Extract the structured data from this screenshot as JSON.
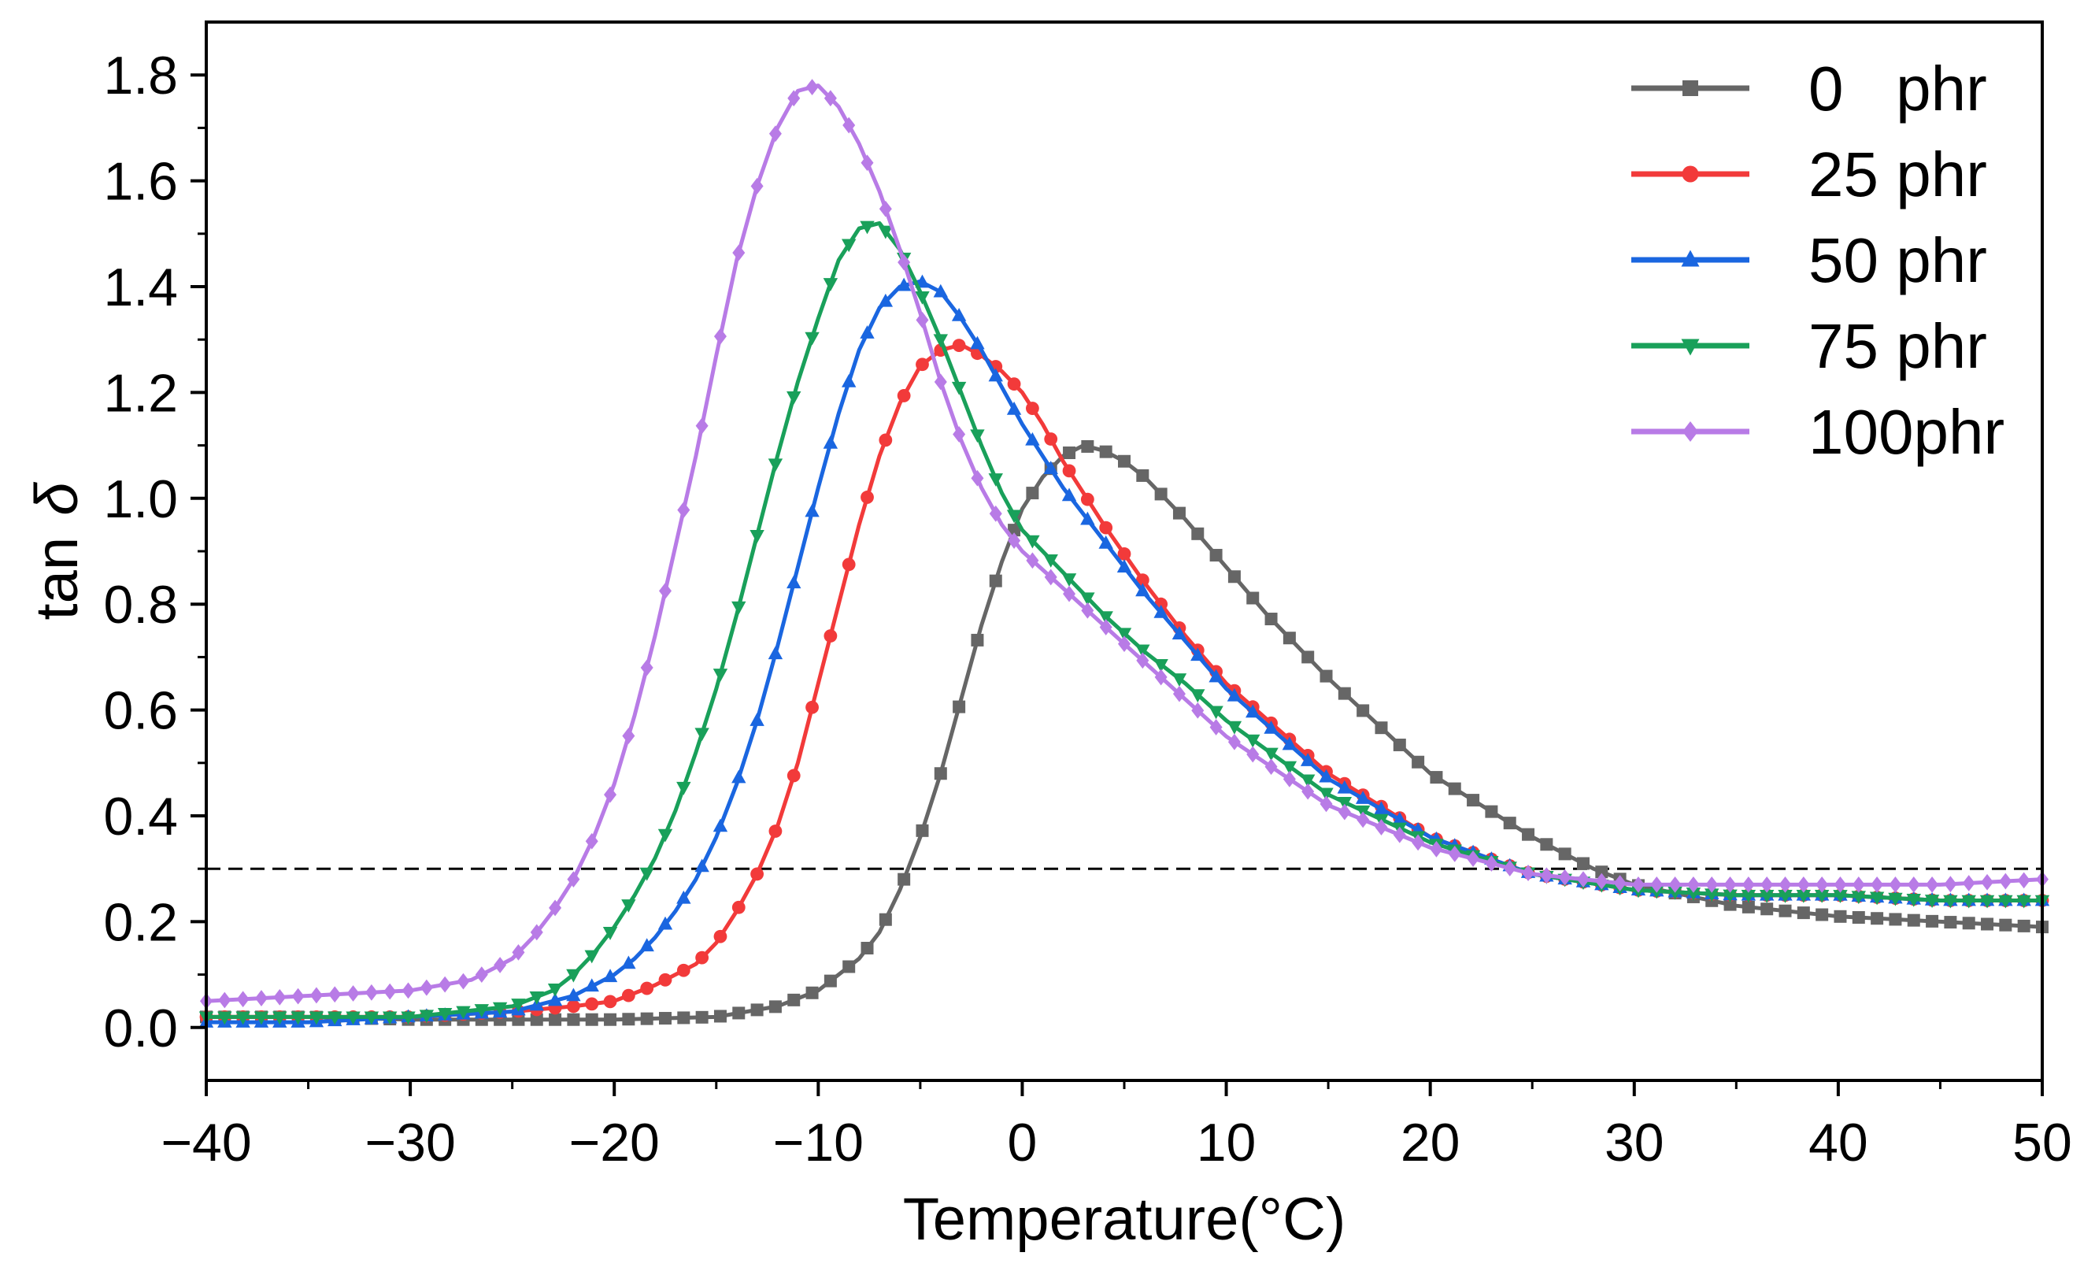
{
  "chart_data": {
    "type": "line",
    "title": "",
    "xlabel": "Temperature(°C)",
    "ylabel_text": "tan",
    "ylabel_symbol": "δ",
    "xlim": [
      -40,
      50
    ],
    "ylim": [
      -0.1,
      1.9
    ],
    "x_ticks": [
      -40,
      -30,
      -20,
      -10,
      0,
      10,
      20,
      30,
      40,
      50
    ],
    "x_tick_labels": [
      "−40",
      "−30",
      "−20",
      "−10",
      "0",
      "10",
      "20",
      "30",
      "40",
      "50"
    ],
    "y_ticks": [
      0.0,
      0.2,
      0.4,
      0.6,
      0.8,
      1.0,
      1.2,
      1.4,
      1.6,
      1.8
    ],
    "y_tick_labels": [
      "0.0",
      "0.2",
      "0.4",
      "0.6",
      "0.8",
      "1.0",
      "1.2",
      "1.4",
      "1.6",
      "1.8"
    ],
    "grid": false,
    "legend_position": "top-right",
    "reference_line": {
      "y": 0.3,
      "style": "dashed",
      "color": "#000000"
    },
    "series": [
      {
        "name": "0   phr",
        "color": "#666666",
        "marker": "square",
        "x": [
          -40,
          -35,
          -30,
          -25,
          -20,
          -15,
          -12,
          -10,
          -8,
          -7,
          -6,
          -5,
          -4,
          -3,
          -2,
          -1,
          0,
          1,
          2,
          3,
          4,
          5,
          6,
          8,
          10,
          12,
          15,
          20,
          25,
          28,
          30,
          35,
          40,
          45,
          50
        ],
        "y": [
          0.02,
          0.02,
          0.015,
          0.015,
          0.015,
          0.02,
          0.04,
          0.07,
          0.13,
          0.18,
          0.26,
          0.36,
          0.48,
          0.62,
          0.76,
          0.88,
          0.98,
          1.04,
          1.08,
          1.1,
          1.09,
          1.07,
          1.04,
          0.96,
          0.87,
          0.78,
          0.66,
          0.48,
          0.36,
          0.3,
          0.27,
          0.23,
          0.21,
          0.2,
          0.19
        ]
      },
      {
        "name": "25 phr",
        "color": "#f23a3a",
        "marker": "circle",
        "x": [
          -40,
          -35,
          -30,
          -25,
          -22,
          -20,
          -18,
          -16,
          -15,
          -14,
          -13,
          -12,
          -11,
          -10,
          -9,
          -8,
          -7,
          -6,
          -5,
          -4,
          -3,
          -2,
          -1,
          0,
          1,
          2,
          4,
          6,
          8,
          10,
          15,
          20,
          25,
          30,
          35,
          40,
          45,
          50
        ],
        "y": [
          0.02,
          0.02,
          0.02,
          0.03,
          0.04,
          0.05,
          0.08,
          0.12,
          0.16,
          0.22,
          0.29,
          0.38,
          0.5,
          0.65,
          0.8,
          0.95,
          1.08,
          1.18,
          1.25,
          1.28,
          1.29,
          1.27,
          1.24,
          1.2,
          1.14,
          1.07,
          0.95,
          0.84,
          0.74,
          0.65,
          0.48,
          0.36,
          0.29,
          0.26,
          0.25,
          0.25,
          0.24,
          0.24
        ]
      },
      {
        "name": "50 phr",
        "color": "#1a66e0",
        "marker": "triangle-up",
        "x": [
          -40,
          -35,
          -30,
          -25,
          -22,
          -20,
          -19,
          -18,
          -17,
          -16,
          -15,
          -14,
          -13,
          -12,
          -11,
          -10,
          -9,
          -8,
          -7,
          -6,
          -5,
          -4,
          -3,
          -2,
          -1,
          0,
          2,
          4,
          6,
          8,
          10,
          15,
          20,
          25,
          30,
          35,
          40,
          45,
          50
        ],
        "y": [
          0.01,
          0.01,
          0.02,
          0.03,
          0.06,
          0.1,
          0.13,
          0.17,
          0.22,
          0.28,
          0.36,
          0.46,
          0.58,
          0.72,
          0.87,
          1.02,
          1.16,
          1.28,
          1.36,
          1.4,
          1.41,
          1.39,
          1.34,
          1.28,
          1.21,
          1.14,
          1.02,
          0.92,
          0.82,
          0.73,
          0.64,
          0.47,
          0.36,
          0.29,
          0.26,
          0.25,
          0.25,
          0.24,
          0.24
        ]
      },
      {
        "name": "75 phr",
        "color": "#19a05a",
        "marker": "triangle-down",
        "x": [
          -40,
          -35,
          -30,
          -25,
          -23,
          -22,
          -21,
          -20,
          -19,
          -18,
          -17,
          -16,
          -15,
          -14,
          -13,
          -12,
          -11,
          -10,
          -9,
          -8,
          -7,
          -6,
          -5,
          -4,
          -3,
          -2,
          -1,
          0,
          2,
          4,
          6,
          8,
          10,
          15,
          20,
          25,
          30,
          35,
          40,
          45,
          50
        ],
        "y": [
          0.02,
          0.02,
          0.02,
          0.04,
          0.07,
          0.1,
          0.14,
          0.19,
          0.25,
          0.32,
          0.41,
          0.52,
          0.64,
          0.78,
          0.93,
          1.08,
          1.22,
          1.34,
          1.45,
          1.51,
          1.52,
          1.47,
          1.39,
          1.3,
          1.2,
          1.1,
          1.01,
          0.94,
          0.86,
          0.78,
          0.71,
          0.65,
          0.58,
          0.44,
          0.35,
          0.29,
          0.26,
          0.25,
          0.25,
          0.24,
          0.24
        ]
      },
      {
        "name": "100phr",
        "color": "#b87be6",
        "marker": "diamond",
        "x": [
          -40,
          -35,
          -30,
          -27,
          -25,
          -24,
          -23,
          -22,
          -21,
          -20,
          -19,
          -18,
          -17,
          -16,
          -15,
          -14,
          -13,
          -12,
          -11,
          -10,
          -9,
          -8,
          -7,
          -6,
          -5,
          -4,
          -3,
          -2,
          -1,
          0,
          2,
          4,
          6,
          8,
          10,
          15,
          20,
          25,
          30,
          35,
          40,
          45,
          50
        ],
        "y": [
          0.05,
          0.06,
          0.07,
          0.09,
          0.13,
          0.17,
          0.22,
          0.28,
          0.36,
          0.46,
          0.59,
          0.74,
          0.91,
          1.08,
          1.27,
          1.45,
          1.59,
          1.7,
          1.77,
          1.78,
          1.74,
          1.67,
          1.58,
          1.47,
          1.35,
          1.22,
          1.11,
          1.02,
          0.95,
          0.9,
          0.83,
          0.76,
          0.69,
          0.62,
          0.55,
          0.42,
          0.34,
          0.29,
          0.27,
          0.27,
          0.27,
          0.27,
          0.28
        ]
      }
    ]
  }
}
